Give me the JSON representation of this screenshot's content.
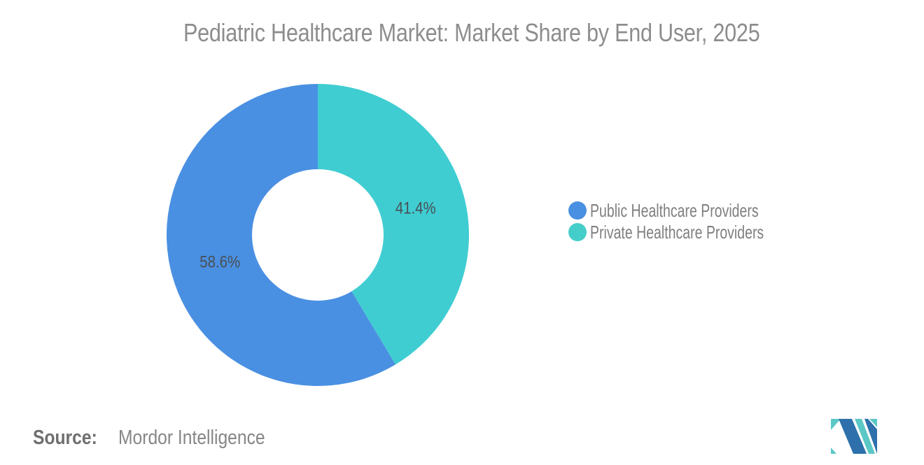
{
  "title": "Pediatric Healthcare Market: Market Share by End User, 2025",
  "chart_data": {
    "type": "pie",
    "subtype": "donut",
    "title": "Pediatric Healthcare Market: Market Share by End User, 2025",
    "categories": [
      "Public Healthcare Providers",
      "Private Healthcare Providers"
    ],
    "values": [
      58.6,
      41.4
    ],
    "unit": "%",
    "slice_labels": [
      "58.6%",
      "41.4%"
    ],
    "colors": [
      "#4a90e2",
      "#3fcdd2"
    ],
    "inner_radius_ratio": 0.435,
    "start_angle_deg": 0,
    "first_slice_direction": "counter-clockwise-from-top",
    "legend_position": "right",
    "label_color": "#4a4f55",
    "background": "#ffffff"
  },
  "legend": {
    "items": [
      {
        "label": "Public Healthcare Providers",
        "color": "#4a90e2"
      },
      {
        "label": "Private Healthcare Providers",
        "color": "#45cec9"
      }
    ]
  },
  "source": {
    "prefix": "Source:",
    "text": "Mordor Intelligence"
  },
  "logo": {
    "name": "Mordor Intelligence",
    "blue": "#2d70ab",
    "teal": "#5bc8c6"
  },
  "colors": {
    "title_text": "#8d8d8d",
    "legend_text": "#7f7f7f",
    "source_prefix_text": "#6f6f6f",
    "source_text": "#868686",
    "background": "#ffffff"
  }
}
